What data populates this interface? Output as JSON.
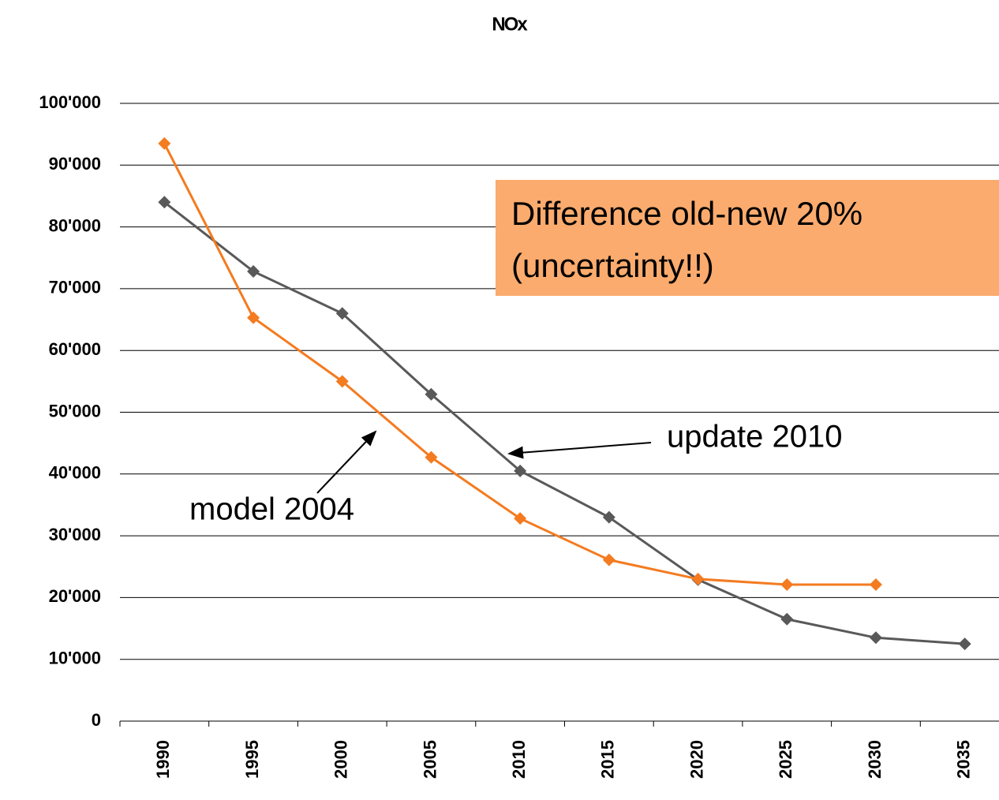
{
  "chart_data": {
    "type": "line",
    "title": "NOx",
    "categories": [
      "1990",
      "1995",
      "2000",
      "2005",
      "2010",
      "2015",
      "2020",
      "2025",
      "2030",
      "2035"
    ],
    "series": [
      {
        "name": "update 2010",
        "color": "#595959",
        "values": [
          84000,
          72800,
          66000,
          52900,
          40500,
          33000,
          22900,
          16500,
          13500,
          12500
        ]
      },
      {
        "name": "model 2004",
        "color": "#f47b20",
        "values": [
          93500,
          65300,
          55000,
          42700,
          32800,
          26100,
          23000,
          22100,
          22100,
          null
        ]
      }
    ],
    "ylim": [
      0,
      100000
    ],
    "yticks": [
      0,
      {
        "value": 10000,
        "label": "10'000"
      },
      {
        "value": 20000,
        "label": "20'000"
      },
      {
        "value": 30000,
        "label": "30'000"
      },
      {
        "value": 40000,
        "label": "40'000"
      },
      {
        "value": 50000,
        "label": "50'000"
      },
      {
        "value": 60000,
        "label": "60'000"
      },
      {
        "value": 70000,
        "label": "70'000"
      },
      {
        "value": 80000,
        "label": "80'000"
      },
      {
        "value": 90000,
        "label": "90'000"
      },
      {
        "value": 100000,
        "label": "100'000"
      }
    ],
    "grid": true,
    "annotation": [
      "Difference old-new 20%",
      "(uncertainty!!)"
    ]
  }
}
